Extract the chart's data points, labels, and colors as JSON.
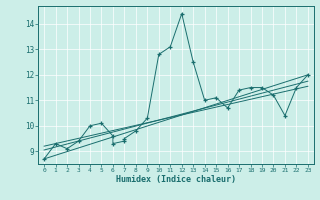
{
  "title": "",
  "xlabel": "Humidex (Indice chaleur)",
  "bg_color": "#cceee8",
  "line_color": "#1a6e6e",
  "xlim": [
    -0.5,
    23.5
  ],
  "ylim": [
    8.5,
    14.7
  ],
  "yticks": [
    9,
    10,
    11,
    12,
    13,
    14
  ],
  "xticks": [
    0,
    1,
    2,
    3,
    4,
    5,
    6,
    7,
    8,
    9,
    10,
    11,
    12,
    13,
    14,
    15,
    16,
    17,
    18,
    19,
    20,
    21,
    22,
    23
  ],
  "main_series": [
    [
      0,
      8.7
    ],
    [
      1,
      9.3
    ],
    [
      2,
      9.1
    ],
    [
      3,
      9.4
    ],
    [
      4,
      10.0
    ],
    [
      5,
      10.1
    ],
    [
      6,
      9.6
    ],
    [
      6,
      9.3
    ],
    [
      7,
      9.4
    ],
    [
      7,
      9.5
    ],
    [
      8,
      9.8
    ],
    [
      9,
      10.3
    ],
    [
      10,
      12.8
    ],
    [
      11,
      13.1
    ],
    [
      12,
      14.4
    ],
    [
      13,
      12.5
    ],
    [
      14,
      11.0
    ],
    [
      15,
      11.1
    ],
    [
      16,
      10.7
    ],
    [
      17,
      11.4
    ],
    [
      18,
      11.5
    ],
    [
      19,
      11.5
    ],
    [
      20,
      11.2
    ],
    [
      21,
      10.4
    ],
    [
      22,
      11.5
    ],
    [
      23,
      12.0
    ]
  ],
  "line1": [
    [
      0,
      8.7
    ],
    [
      23,
      12.0
    ]
  ],
  "line2": [
    [
      0,
      9.05
    ],
    [
      23,
      11.75
    ]
  ],
  "line3": [
    [
      0,
      9.2
    ],
    [
      23,
      11.55
    ]
  ]
}
